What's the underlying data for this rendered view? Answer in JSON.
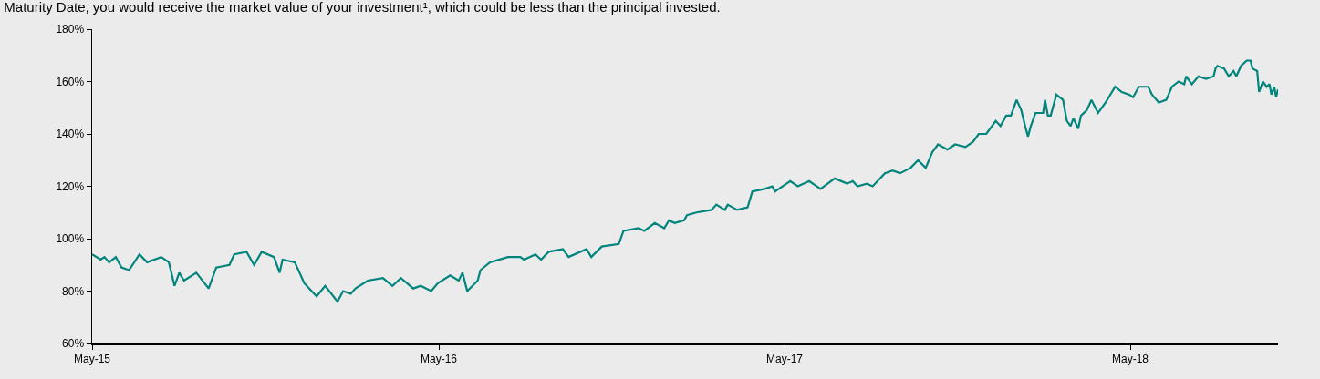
{
  "chart_data": {
    "type": "line",
    "title": "Maturity Date, you would receive the market value of your investment¹, which could be less than the principal invested.",
    "x": [
      "2015-05-01",
      "2015-05-10",
      "2015-05-14",
      "2015-05-19",
      "2015-05-26",
      "2015-06-01",
      "2015-06-09",
      "2015-06-20",
      "2015-06-28",
      "2015-07-13",
      "2015-07-21",
      "2015-07-27",
      "2015-08-01",
      "2015-08-06",
      "2015-08-19",
      "2015-09-01",
      "2015-09-09",
      "2015-09-23",
      "2015-09-28",
      "2015-10-11",
      "2015-10-19",
      "2015-10-27",
      "2015-11-09",
      "2015-11-15",
      "2015-11-18",
      "2015-12-01",
      "2015-12-11",
      "2015-12-24",
      "2016-01-02",
      "2016-01-15",
      "2016-01-21",
      "2016-01-29",
      "2016-02-03",
      "2016-02-16",
      "2016-03-03",
      "2016-03-13",
      "2016-03-22",
      "2016-04-04",
      "2016-04-12",
      "2016-04-23",
      "2016-04-30",
      "2016-05-13",
      "2016-05-22",
      "2016-05-26",
      "2016-05-31",
      "2016-06-11",
      "2016-06-14",
      "2016-06-24",
      "2016-07-13",
      "2016-07-26",
      "2016-07-30",
      "2016-08-11",
      "2016-08-17",
      "2016-08-25",
      "2016-09-09",
      "2016-09-15",
      "2016-10-04",
      "2016-10-09",
      "2016-10-20",
      "2016-11-07",
      "2016-11-12",
      "2016-11-28",
      "2016-12-04",
      "2016-12-15",
      "2016-12-25",
      "2016-12-30",
      "2017-01-05",
      "2017-01-15",
      "2017-01-18",
      "2017-01-28",
      "2017-02-13",
      "2017-02-18",
      "2017-02-27",
      "2017-03-02",
      "2017-03-12",
      "2017-03-23",
      "2017-03-28",
      "2017-04-10",
      "2017-04-18",
      "2017-04-21",
      "2017-05-07",
      "2017-05-15",
      "2017-05-27",
      "2017-06-08",
      "2017-06-23",
      "2017-07-06",
      "2017-07-12",
      "2017-07-17",
      "2017-07-27",
      "2017-08-02",
      "2017-08-15",
      "2017-08-23",
      "2017-08-31",
      "2017-09-11",
      "2017-09-19",
      "2017-09-27",
      "2017-10-04",
      "2017-10-10",
      "2017-10-20",
      "2017-10-28",
      "2017-11-08",
      "2017-11-16",
      "2017-11-22",
      "2017-11-30",
      "2017-12-10",
      "2017-12-15",
      "2017-12-21",
      "2017-12-26",
      "2018-01-01",
      "2018-01-06",
      "2018-01-10",
      "2018-01-13",
      "2018-01-16",
      "2018-01-21",
      "2018-01-29",
      "2018-01-31",
      "2018-02-03",
      "2018-02-06",
      "2018-02-12",
      "2018-02-19",
      "2018-02-23",
      "2018-02-27",
      "2018-03-02",
      "2018-03-07",
      "2018-03-10",
      "2018-03-16",
      "2018-03-21",
      "2018-03-28",
      "2018-04-05",
      "2018-04-15",
      "2018-04-22",
      "2018-04-30",
      "2018-05-04",
      "2018-05-10",
      "2018-05-20",
      "2018-05-24",
      "2018-05-31",
      "2018-06-08",
      "2018-06-14",
      "2018-06-21",
      "2018-06-27",
      "2018-06-29",
      "2018-07-05",
      "2018-07-12",
      "2018-07-20",
      "2018-07-28",
      "2018-07-30",
      "2018-08-01",
      "2018-08-08",
      "2018-08-13",
      "2018-08-18",
      "2018-08-21",
      "2018-08-26",
      "2018-09-01",
      "2018-09-05",
      "2018-09-07",
      "2018-09-12",
      "2018-09-14",
      "2018-09-18",
      "2018-09-22",
      "2018-09-25",
      "2018-09-27",
      "2018-09-30",
      "2018-10-02",
      "2018-10-04"
    ],
    "series": [
      {
        "color": "#00857c",
        "values": [
          94,
          92,
          93,
          91,
          93,
          89,
          88,
          94,
          91,
          93,
          91,
          82,
          87,
          84,
          87,
          81,
          89,
          90,
          94,
          95,
          90,
          95,
          93,
          87,
          92,
          91,
          83,
          78,
          82,
          76,
          80,
          79,
          81,
          84,
          85,
          82,
          85,
          81,
          82,
          80,
          83,
          86,
          84,
          87,
          80,
          84,
          88,
          91,
          93,
          93,
          92,
          94,
          92,
          95,
          96,
          93,
          96,
          93,
          97,
          98,
          103,
          104,
          103,
          106,
          104,
          107,
          106,
          107,
          109,
          110,
          111,
          113,
          111,
          113,
          111,
          112,
          118,
          119,
          120,
          118,
          122,
          120,
          122,
          119,
          123,
          121,
          122,
          120,
          121,
          120,
          125,
          126,
          125,
          127,
          130,
          127,
          133,
          136,
          134,
          136,
          135,
          137,
          140,
          140,
          145,
          143,
          147,
          147,
          153,
          149,
          143,
          139,
          143,
          148,
          148,
          153,
          147,
          147,
          155,
          153,
          145,
          143,
          146,
          142,
          147,
          149,
          153,
          148,
          152,
          158,
          156,
          155,
          154,
          158,
          158,
          155,
          152,
          153,
          158,
          160,
          159,
          162,
          159,
          162,
          161,
          162,
          165,
          166,
          165,
          162,
          164,
          162,
          166,
          168,
          168,
          165,
          164,
          156,
          160,
          158,
          159,
          155,
          158,
          154,
          157
        ]
      }
    ],
    "xlim": [
      "2015-05-01",
      "2018-10-04"
    ],
    "xticks": [
      {
        "value": "2015-05-01",
        "label": "May-15"
      },
      {
        "value": "2016-05-01",
        "label": "May-16"
      },
      {
        "value": "2017-05-01",
        "label": "May-17"
      },
      {
        "value": "2018-05-01",
        "label": "May-18"
      }
    ],
    "ylim": [
      60,
      180
    ],
    "yticks": [
      {
        "value": 60,
        "label": "60%"
      },
      {
        "value": 80,
        "label": "80%"
      },
      {
        "value": 100,
        "label": "100%"
      },
      {
        "value": 120,
        "label": "120%"
      },
      {
        "value": 140,
        "label": "140%"
      },
      {
        "value": 160,
        "label": "160%"
      },
      {
        "value": 180,
        "label": "180%"
      }
    ],
    "grid": false,
    "marker": "none",
    "line_style": "solid"
  }
}
